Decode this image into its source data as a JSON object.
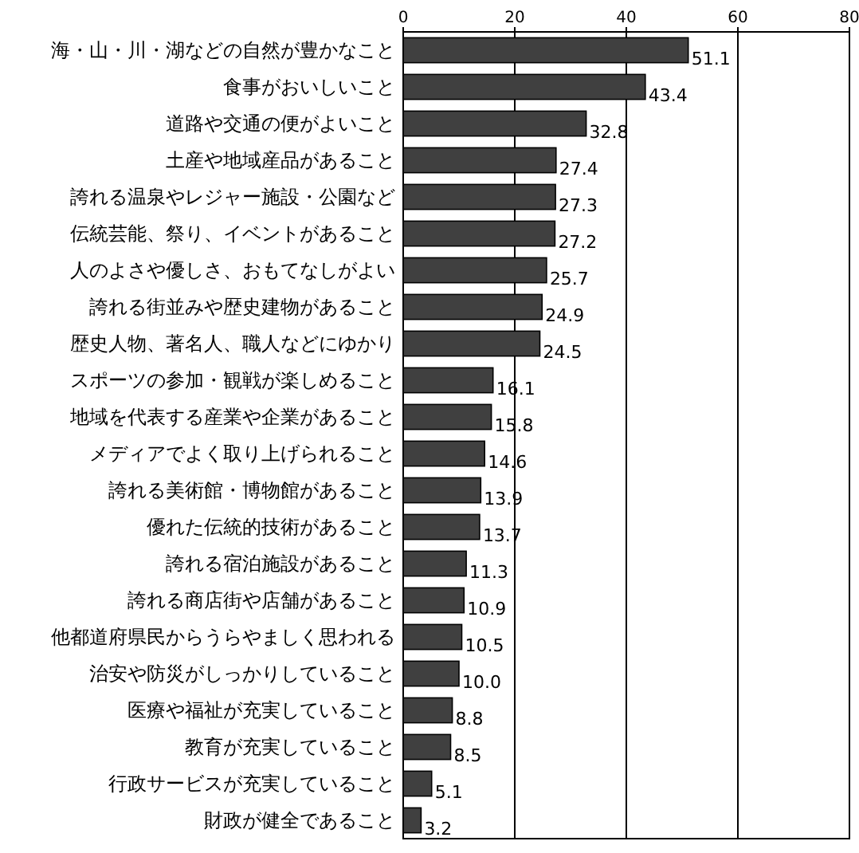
{
  "chart_data": {
    "type": "bar",
    "orientation": "horizontal",
    "categories": [
      "海・山・川・湖などの自然が豊かなこと",
      "食事がおいしいこと",
      "道路や交通の便がよいこと",
      "土産や地域産品があること",
      "誇れる温泉やレジャー施設・公園など",
      "伝統芸能、祭り、イベントがあること",
      "人のよさや優しさ、おもてなしがよい",
      "誇れる街並みや歴史建物があること",
      "歴史人物、著名人、職人などにゆかり",
      "スポーツの参加・観戦が楽しめること",
      "地域を代表する産業や企業があること",
      "メディアでよく取り上げられること",
      "誇れる美術館・博物館があること",
      "優れた伝統的技術があること",
      "誇れる宿泊施設があること",
      "誇れる商店街や店舗があること",
      "他都道府県民からうらやましく思われる",
      "治安や防災がしっかりしていること",
      "医療や福祉が充実していること",
      "教育が充実していること",
      "行政サービスが充実していること",
      "財政が健全であること"
    ],
    "values": [
      51.1,
      43.4,
      32.8,
      27.4,
      27.3,
      27.2,
      25.7,
      24.9,
      24.5,
      16.1,
      15.8,
      14.6,
      13.9,
      13.7,
      11.3,
      10.9,
      10.5,
      10.0,
      8.8,
      8.5,
      5.1,
      3.2
    ],
    "value_labels": [
      "51.1",
      "43.4",
      "32.8",
      "27.4",
      "27.3",
      "27.2",
      "25.7",
      "24.9",
      "24.5",
      "16.1",
      "15.8",
      "14.6",
      "13.9",
      "13.7",
      "11.3",
      "10.9",
      "10.5",
      "10.0",
      "8.8",
      "8.5",
      "5.1",
      "3.2"
    ],
    "color": "#404040",
    "xlim": [
      0,
      80
    ],
    "xticks": [
      0,
      20,
      40,
      60,
      80
    ],
    "grid": "x"
  }
}
